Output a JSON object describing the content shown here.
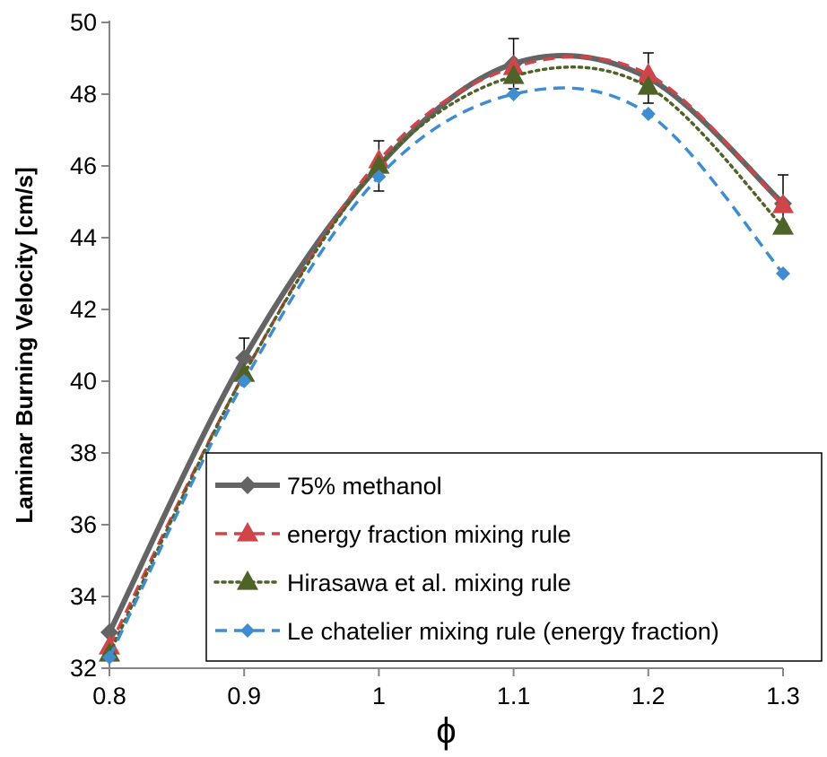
{
  "chart_data": {
    "type": "line",
    "title": "",
    "xlabel": "ϕ",
    "ylabel": "Laminar Burning Velocity [cm/s]",
    "xlim": [
      0.8,
      1.3
    ],
    "ylim": [
      32,
      50
    ],
    "x_ticks": [
      "0.8",
      "0.9",
      "1",
      "1.1",
      "1.2",
      "1.3"
    ],
    "y_ticks": [
      "32",
      "34",
      "36",
      "38",
      "40",
      "42",
      "44",
      "46",
      "48",
      "50"
    ],
    "grid": false,
    "legend_position": "bottom-right",
    "series": [
      {
        "name": "75% methanol",
        "color": "#646464",
        "line_style": "solid",
        "marker": "diamond",
        "x": [
          0.8,
          0.9,
          1.0,
          1.1,
          1.2,
          1.3
        ],
        "y": [
          33.0,
          40.65,
          46.0,
          48.85,
          48.45,
          44.95
        ],
        "error": [
          0.0,
          0.55,
          0.7,
          0.7,
          0.7,
          0.8
        ]
      },
      {
        "name": "energy fraction mixing rule",
        "color": "#d0454a",
        "line_style": "dashed",
        "marker": "triangle",
        "x": [
          0.8,
          0.9,
          1.0,
          1.1,
          1.2,
          1.3
        ],
        "y": [
          32.6,
          40.2,
          46.15,
          48.75,
          48.55,
          44.9
        ]
      },
      {
        "name": "Hirasawa et al. mixing rule",
        "color": "#4f6228",
        "line_style": "dotted",
        "marker": "triangle",
        "x": [
          0.8,
          0.9,
          1.0,
          1.1,
          1.2,
          1.3
        ],
        "y": [
          32.4,
          40.2,
          46.0,
          48.5,
          48.2,
          44.3
        ]
      },
      {
        "name": "Le chatelier mixing rule (energy fraction)",
        "color": "#3f8dd0",
        "line_style": "dashed",
        "marker": "diamond",
        "x": [
          0.8,
          0.9,
          1.0,
          1.1,
          1.2,
          1.3
        ],
        "y": [
          32.3,
          40.0,
          45.7,
          48.0,
          47.45,
          43.0
        ]
      }
    ]
  }
}
